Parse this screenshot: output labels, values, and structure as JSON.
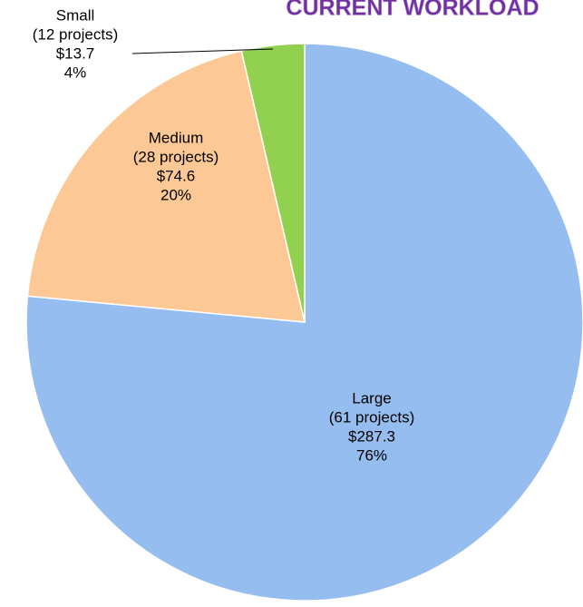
{
  "chart_data": {
    "type": "pie",
    "title": "CURRENT WORKLOAD",
    "categories": [
      "Large",
      "Medium",
      "Small"
    ],
    "values": [
      287.3,
      74.6,
      13.7
    ],
    "value_labels": [
      "$287.3",
      "$74.6",
      "$13.7"
    ],
    "project_labels": [
      "(61 projects)",
      "(28 projects)",
      "(12 projects)"
    ],
    "percentages": [
      76,
      20,
      4
    ],
    "percent_labels": [
      "76%",
      "20%",
      "4%"
    ],
    "colors": [
      "#95bdf0",
      "#fcc896",
      "#92d050"
    ]
  }
}
